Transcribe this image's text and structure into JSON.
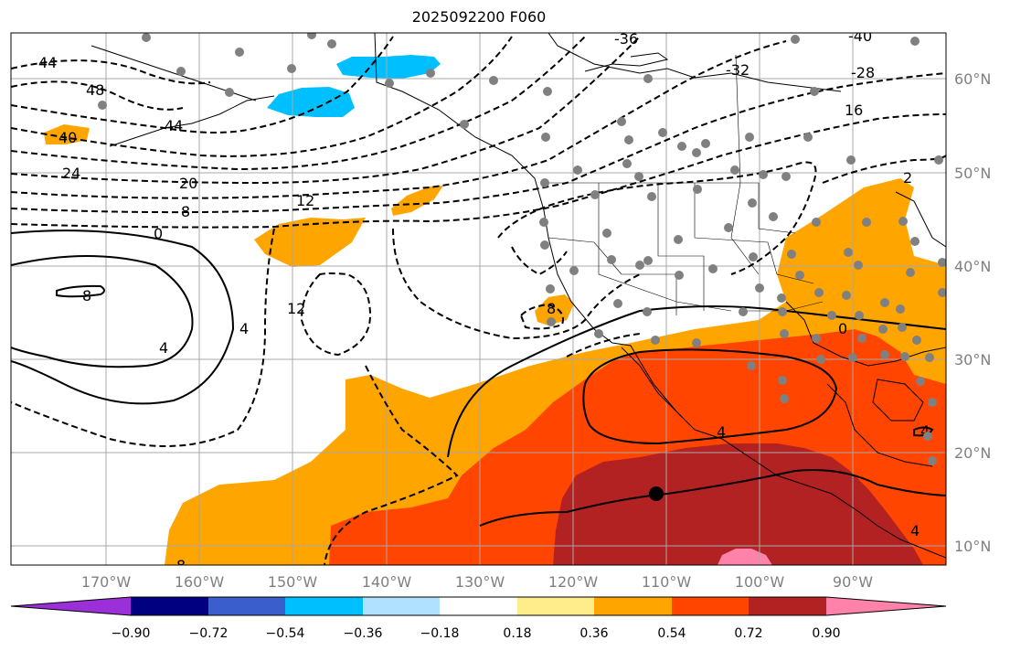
{
  "title": "2025092200 F060",
  "lon_labels": [
    "170°W",
    "160°W",
    "150°W",
    "140°W",
    "130°W",
    "120°W",
    "110°W",
    "100°W",
    "90°W"
  ],
  "lat_labels": [
    "60°N",
    "50°N",
    "40°N",
    "30°N",
    "20°N",
    "10°N"
  ],
  "colorbar": {
    "ticks": [
      "−0.90",
      "−0.72",
      "−0.54",
      "−0.36",
      "−0.18",
      "0.18",
      "0.36",
      "0.54",
      "0.72",
      "0.90"
    ],
    "colors": [
      "#9b30d9",
      "#000080",
      "#3a5fcd",
      "#00bfff",
      "#b0e2ff",
      "#ffffff",
      "#ffec8b",
      "#ffa500",
      "#ff4500",
      "#b22222",
      "#ff82ab"
    ]
  },
  "contour_labels": [
    "44",
    "48",
    "40",
    "44",
    "24",
    "20",
    "8",
    "12",
    "0",
    "8",
    "4",
    "4",
    "12",
    "-36",
    "-32",
    "-40",
    "-28",
    "16",
    "2",
    "8",
    "0",
    "4",
    "4",
    "4",
    "8"
  ],
  "colors": {
    "orange": "#ffa500",
    "orangered": "#ff4500",
    "firebrick": "#b22222",
    "pink": "#ff82ab",
    "skyblue": "#00bfff",
    "station": "#808080"
  }
}
